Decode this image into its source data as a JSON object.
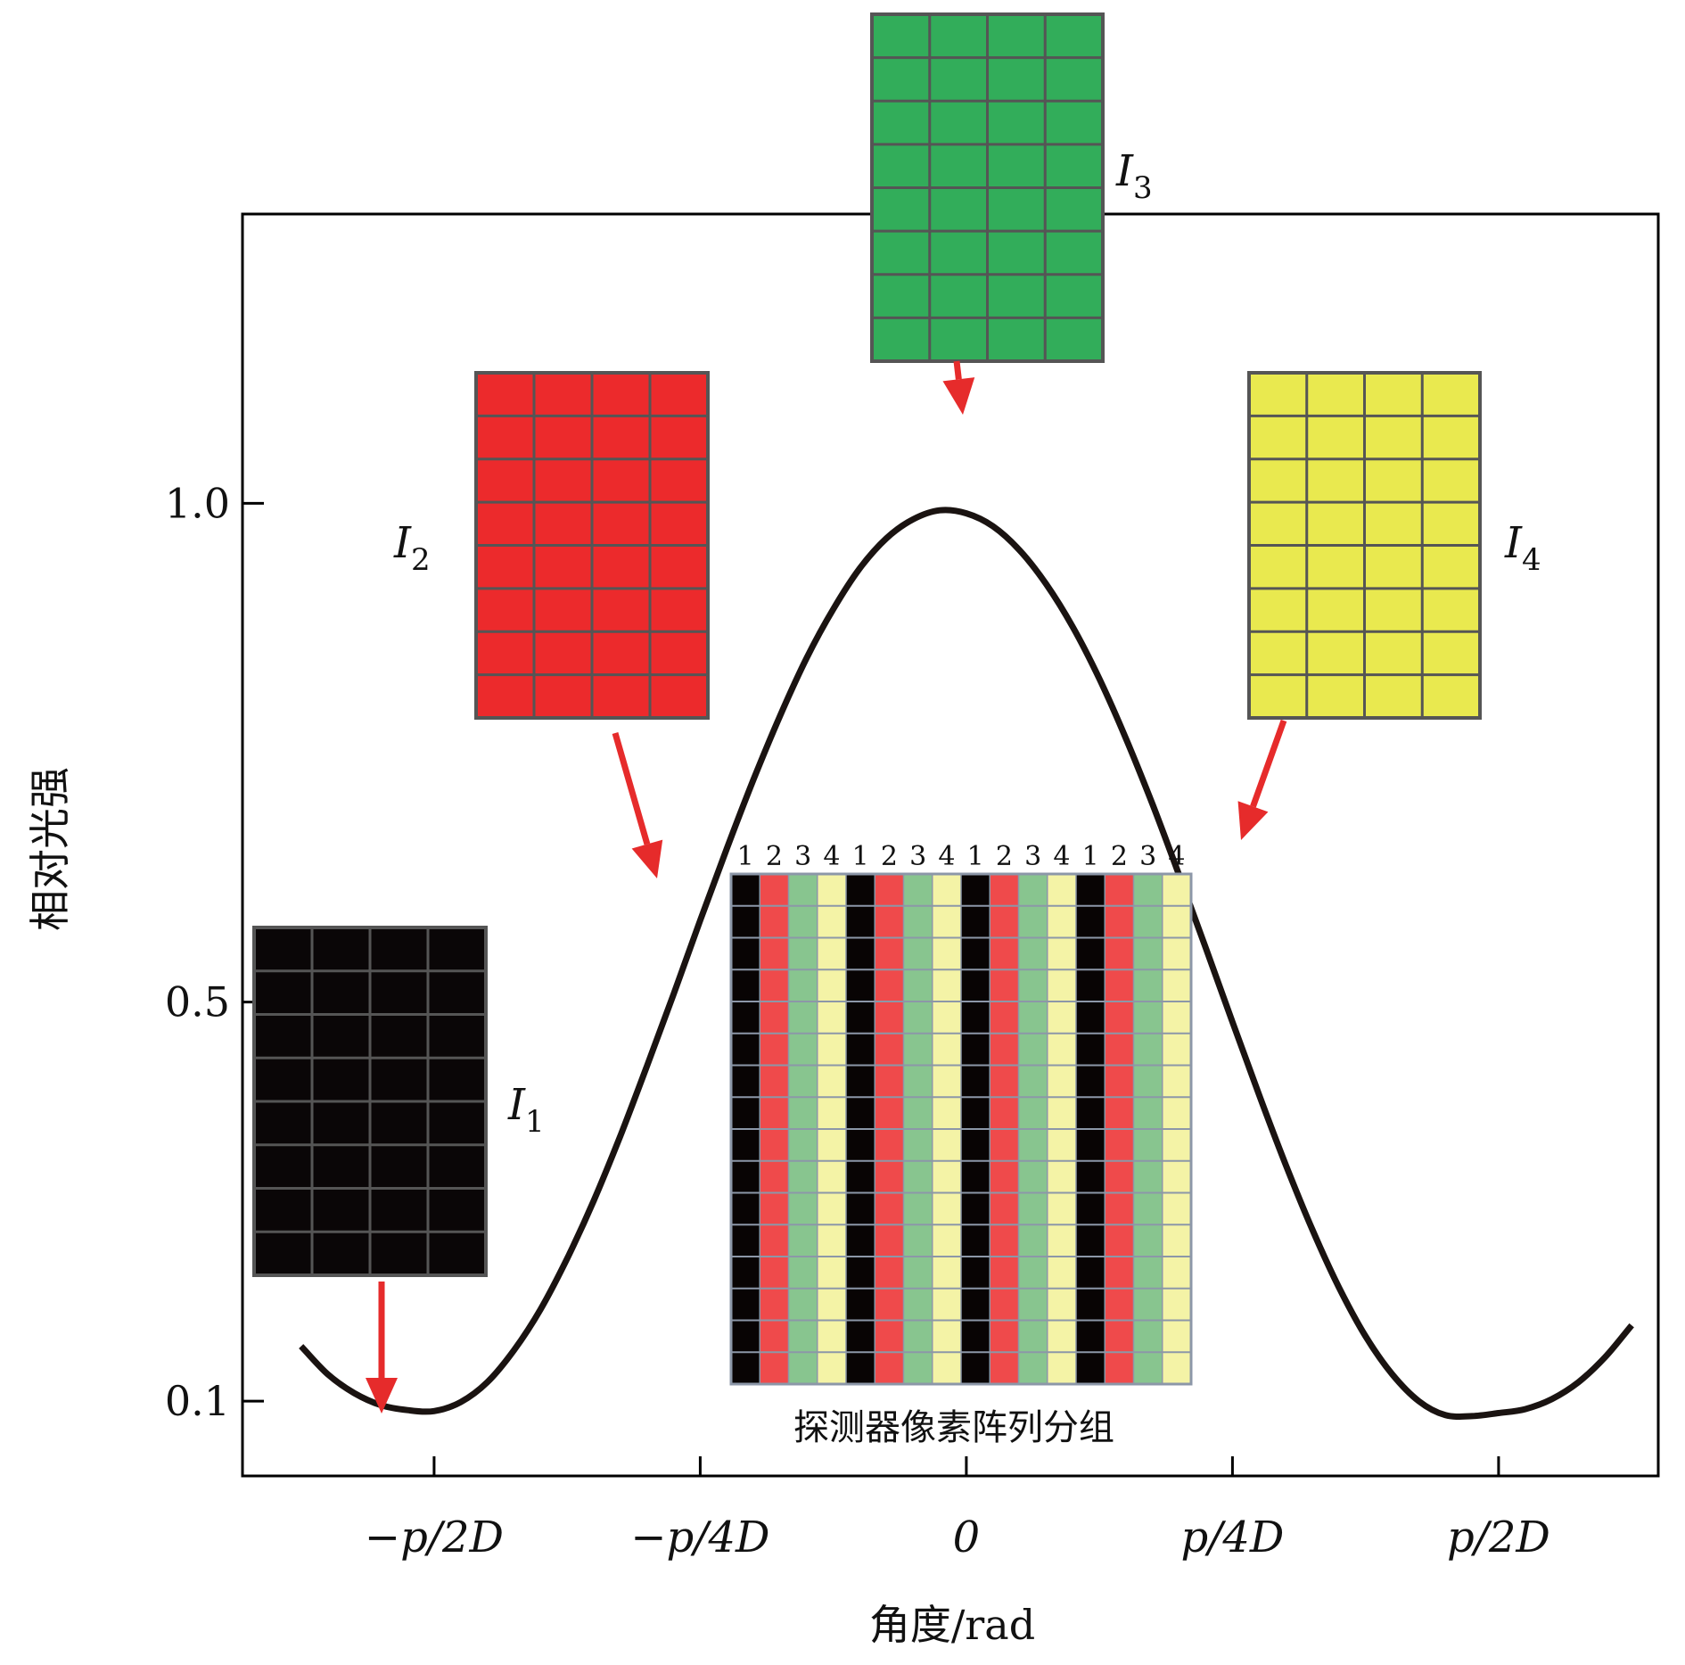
{
  "chart_data": {
    "type": "line",
    "title": "",
    "xlabel": "角度/rad",
    "ylabel": "相对光强",
    "x_ticks": [
      {
        "x": -0.5,
        "label": "−p/2D"
      },
      {
        "x": -0.25,
        "label": "−p/4D"
      },
      {
        "x": 0,
        "label": "0"
      },
      {
        "x": 0.25,
        "label": "p/4D"
      },
      {
        "x": 0.5,
        "label": "p/2D"
      }
    ],
    "y_ticks": [
      {
        "y": 1.0,
        "label": "1.0"
      },
      {
        "y": 0.5,
        "label": "0.5"
      },
      {
        "y": 0.1,
        "label": "0.1"
      }
    ],
    "xlim": [
      -0.68,
      0.65
    ],
    "ylim": [
      0.025,
      1.29
    ],
    "series": [
      {
        "name": "",
        "color": "#1a1311",
        "x": [
          -0.625,
          -0.6,
          -0.575,
          -0.55,
          -0.525,
          -0.5,
          -0.475,
          -0.45,
          -0.425,
          -0.4,
          -0.375,
          -0.35,
          -0.325,
          -0.3,
          -0.275,
          -0.25,
          -0.225,
          -0.2,
          -0.175,
          -0.15,
          -0.125,
          -0.1,
          -0.075,
          -0.05,
          -0.025,
          0,
          0.025,
          0.05,
          0.075,
          0.1,
          0.125,
          0.15,
          0.175,
          0.2,
          0.225,
          0.25,
          0.275,
          0.3,
          0.325,
          0.35,
          0.375,
          0.4,
          0.425,
          0.45,
          0.475,
          0.5,
          0.525,
          0.55,
          0.575,
          0.6,
          0.625
        ],
        "y": [
          0.155,
          0.127,
          0.108,
          0.096,
          0.091,
          0.09,
          0.099,
          0.119,
          0.151,
          0.192,
          0.243,
          0.301,
          0.366,
          0.436,
          0.508,
          0.582,
          0.654,
          0.723,
          0.787,
          0.845,
          0.894,
          0.935,
          0.965,
          0.984,
          0.993,
          0.99,
          0.977,
          0.953,
          0.919,
          0.876,
          0.824,
          0.764,
          0.698,
          0.627,
          0.554,
          0.48,
          0.407,
          0.337,
          0.272,
          0.214,
          0.165,
          0.127,
          0.1,
          0.086,
          0.085,
          0.088,
          0.092,
          0.102,
          0.119,
          0.144,
          0.176
        ]
      }
    ],
    "grid": false,
    "legend": "none",
    "annotations": [
      {
        "label": "I",
        "sub": "1",
        "color": "#0a0607",
        "x": -0.5
      },
      {
        "label": "I",
        "sub": "2",
        "color": "#ec2a2c",
        "x": -0.25
      },
      {
        "label": "I",
        "sub": "3",
        "color": "#32ad5a",
        "x": 0
      },
      {
        "label": "I",
        "sub": "4",
        "color": "#e9e94f",
        "x": 0.25
      }
    ],
    "arrow_color": "#e62b2b",
    "inset": {
      "caption": "探测器像素阵列分组",
      "column_labels": [
        "1",
        "2",
        "3",
        "4",
        "1",
        "2",
        "3",
        "4",
        "1",
        "2",
        "3",
        "4",
        "1",
        "2",
        "3",
        "4"
      ],
      "column_colors": [
        "#080404",
        "#ef4a4b",
        "#88c58f",
        "#f4f3a6"
      ],
      "grid_line_color": "#8c97a8"
    }
  }
}
